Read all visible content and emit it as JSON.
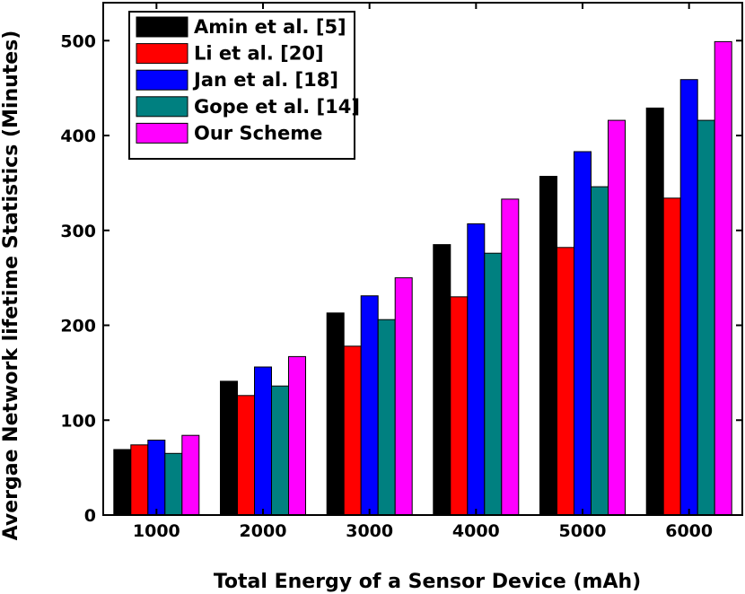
{
  "chart_data": {
    "type": "bar",
    "title": "",
    "xlabel": "Total Energy of a Sensor Device (mAh)",
    "ylabel": "Avergae Network lifetime Statistics (Minutes)",
    "categories": [
      "1000",
      "2000",
      "3000",
      "4000",
      "5000",
      "6000"
    ],
    "ylim": [
      0,
      540
    ],
    "yticks": [
      0,
      100,
      200,
      300,
      400,
      500
    ],
    "grid": false,
    "legend_position": "top-left",
    "series": [
      {
        "name": "Amin et al. [5]",
        "color": "#000000",
        "values": [
          69,
          141,
          213,
          285,
          357,
          429
        ]
      },
      {
        "name": "Li et al. [20]",
        "color": "#ff0000",
        "values": [
          74,
          126,
          178,
          230,
          282,
          334
        ]
      },
      {
        "name": "Jan et al. [18]",
        "color": "#0000ff",
        "values": [
          79,
          156,
          231,
          307,
          383,
          459
        ]
      },
      {
        "name": "Gope et al. [14]",
        "color": "#008080",
        "values": [
          65,
          136,
          206,
          276,
          346,
          416
        ]
      },
      {
        "name": "Our Scheme",
        "color": "#ff00ff",
        "values": [
          84,
          167,
          250,
          333,
          416,
          499
        ]
      }
    ]
  }
}
